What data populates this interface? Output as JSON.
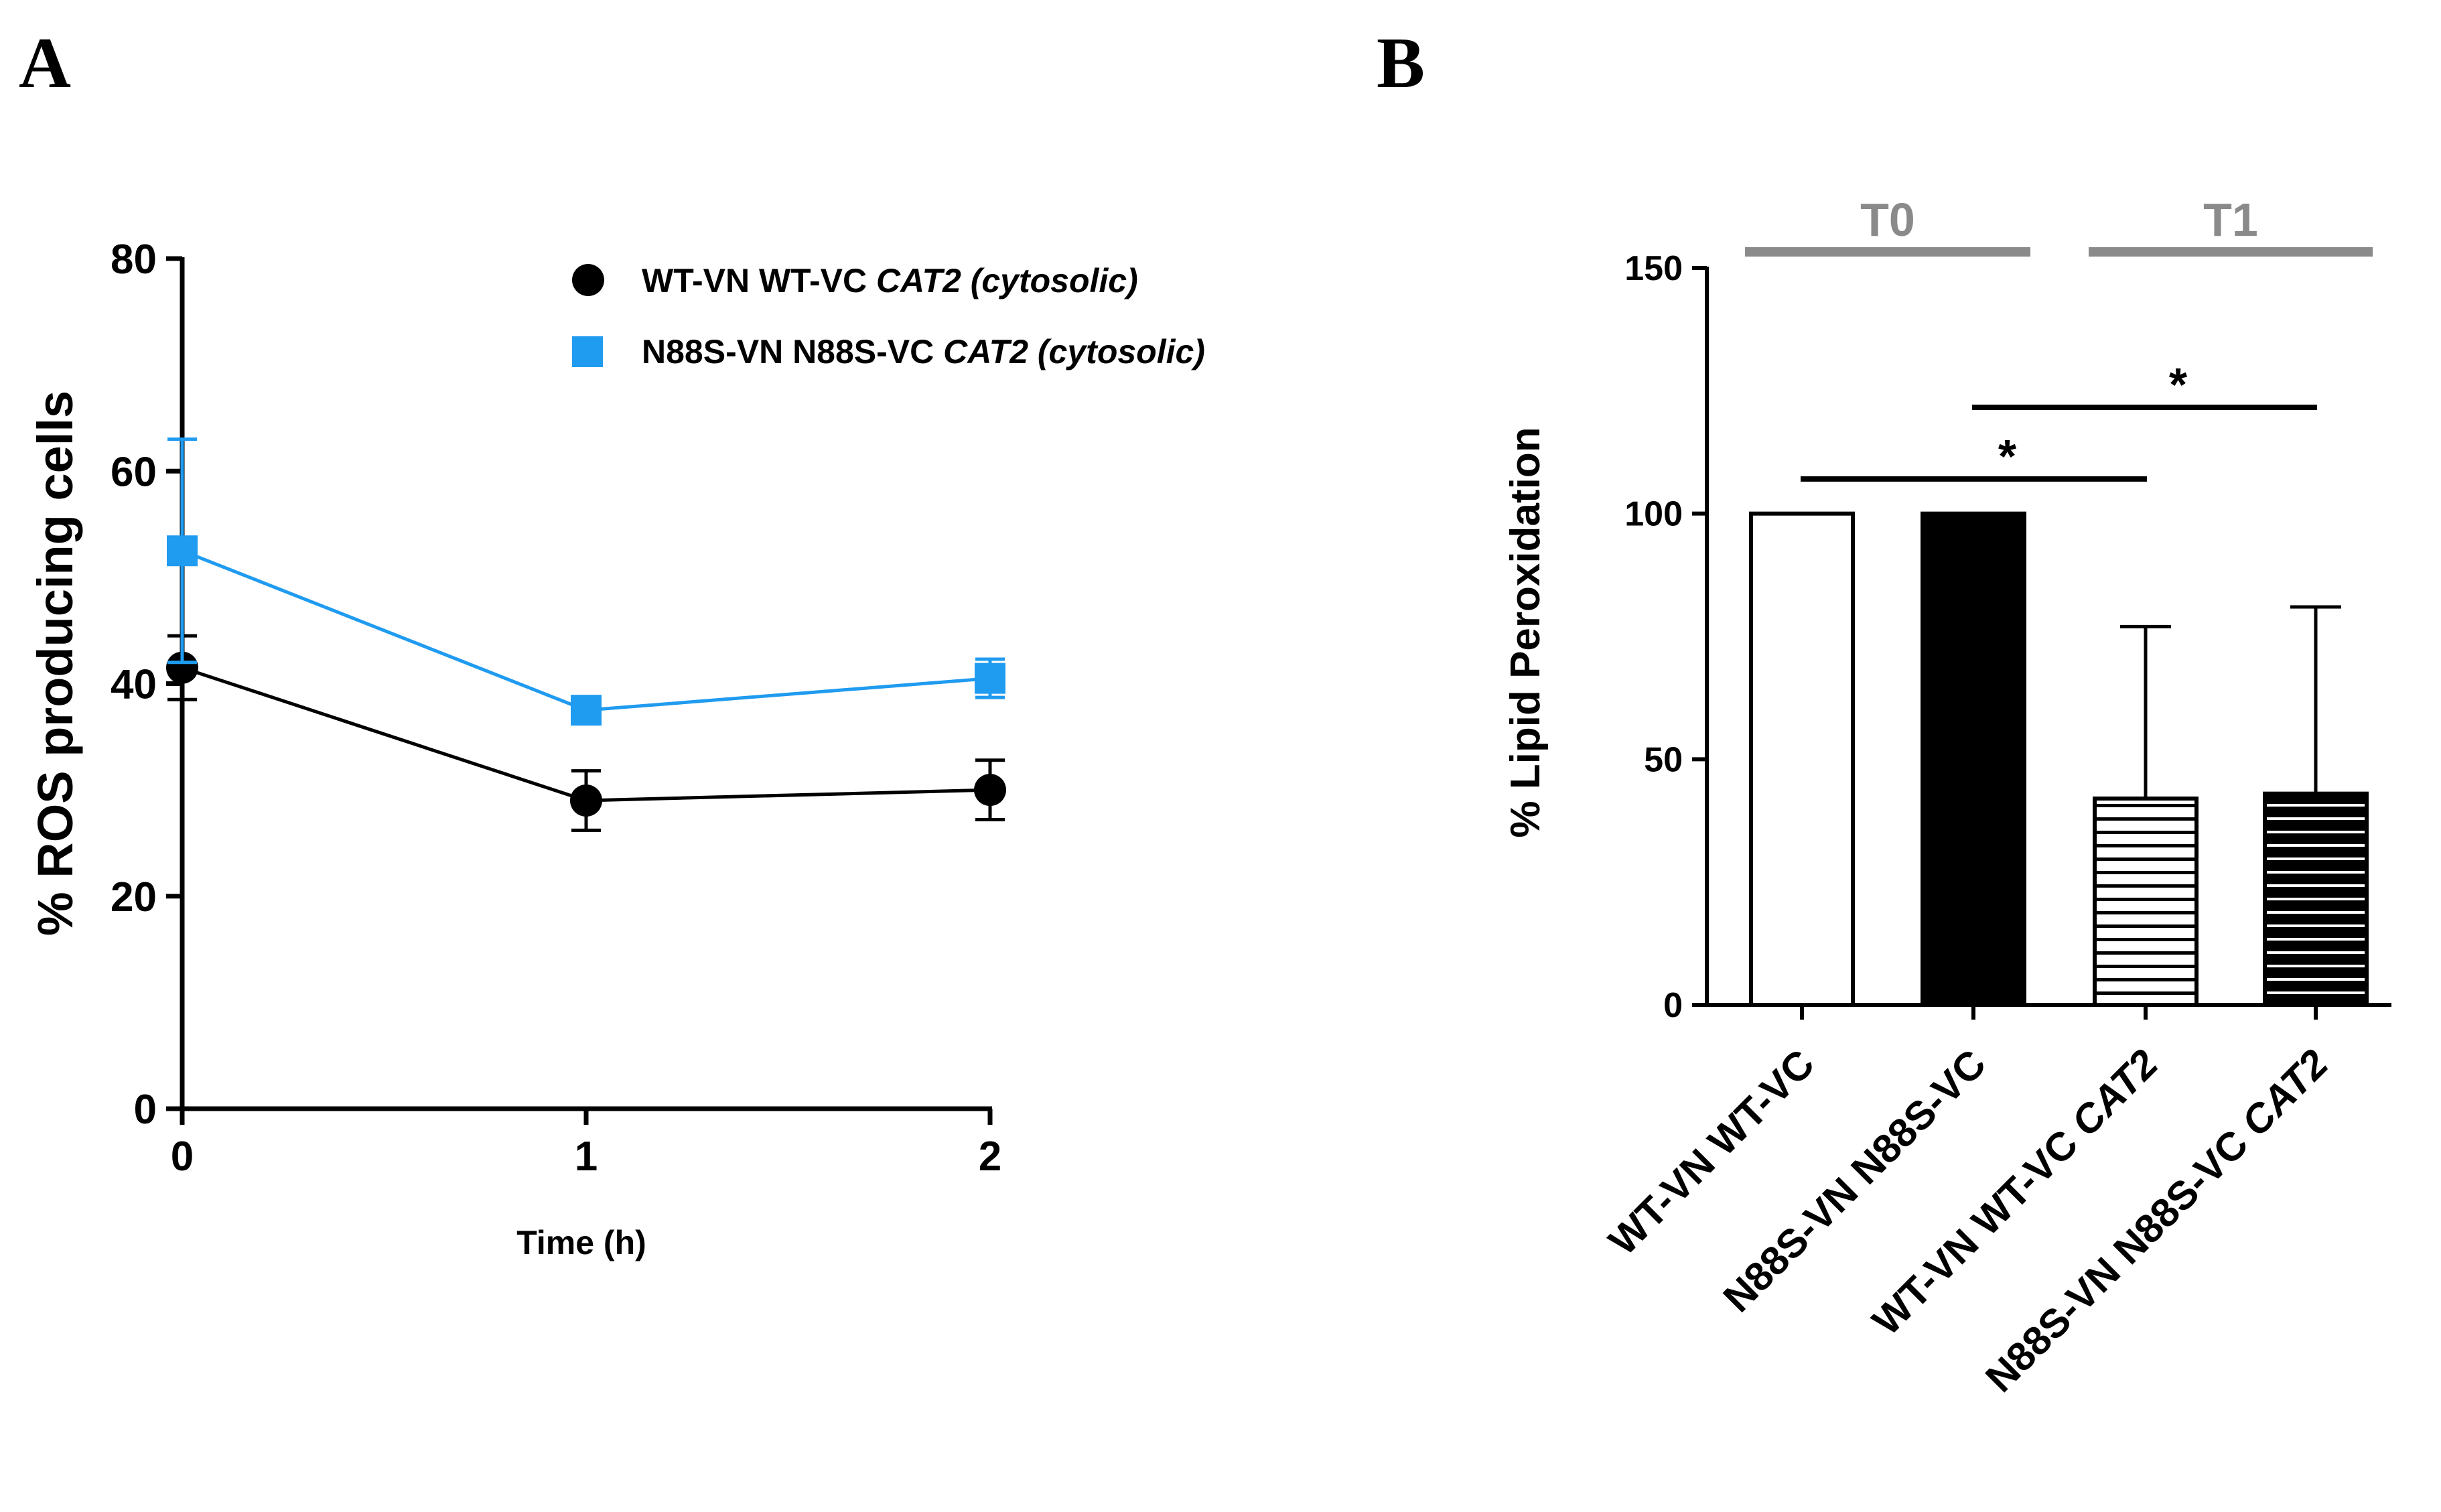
{
  "panel_labels": {
    "a": "A",
    "b": "B"
  },
  "chart_data": [
    {
      "type": "line",
      "ylabel": "% ROS producing cells",
      "xlabel": "Time (h)",
      "x": [
        0,
        1,
        2
      ],
      "x_ticks": [
        "0",
        "1",
        "2"
      ],
      "xlim": [
        0,
        2
      ],
      "ylim": [
        0,
        80
      ],
      "y_ticks": [
        "0",
        "20",
        "40",
        "60",
        "80"
      ],
      "legend_position": "top-right",
      "series": [
        {
          "name_plain": "WT-VN WT-VC ",
          "name_italic": "CAT2 (cytosolic)",
          "marker": "circle",
          "color": "#000000",
          "values": [
            41.5,
            29.0,
            30.0
          ],
          "error": [
            3.0,
            2.8,
            2.8
          ]
        },
        {
          "name_plain": "N88S-VN N88S-VC ",
          "name_italic": "CAT2 (cytosolic)",
          "marker": "square",
          "color": "#1f9bf0",
          "values": [
            52.5,
            37.5,
            40.5
          ],
          "error": [
            10.5,
            0.8,
            1.8
          ]
        }
      ],
      "grid": false
    },
    {
      "type": "bar",
      "ylabel": "% Lipid Peroxidation",
      "ylim": [
        0,
        150
      ],
      "y_ticks": [
        "0",
        "50",
        "100",
        "150"
      ],
      "categories": [
        {
          "plain": "WT-VN WT-VC",
          "italic": ""
        },
        {
          "plain": "N88S-VN N88S-VC",
          "italic": ""
        },
        {
          "plain": "WT-VN WT-VC ",
          "italic": "CAT2"
        },
        {
          "plain": "N88S-VN N88S-VC ",
          "italic": "CAT2"
        }
      ],
      "values": [
        100,
        100,
        42,
        43
      ],
      "error_upper": [
        0,
        0,
        35,
        38
      ],
      "bar_styles": [
        "white",
        "black",
        "white-striped",
        "black-striped"
      ],
      "groups": [
        {
          "label": "T0",
          "bars": [
            0,
            1
          ]
        },
        {
          "label": "T1",
          "bars": [
            2,
            3
          ]
        }
      ],
      "significance": [
        {
          "from": 0,
          "to": 2,
          "label": "*"
        },
        {
          "from": 1,
          "to": 3,
          "label": "*"
        }
      ],
      "group_line_color": "#8a8a8a",
      "grid": false
    }
  ]
}
